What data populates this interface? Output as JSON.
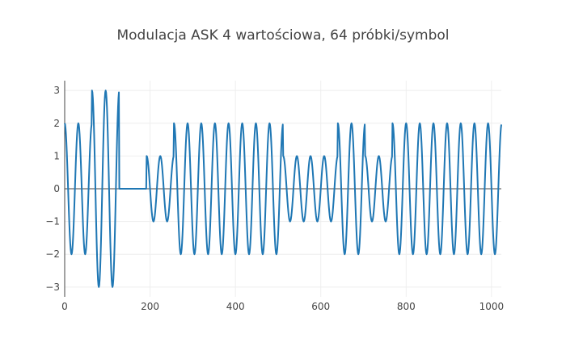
{
  "chart_data": {
    "type": "line",
    "title": "Modulacja ASK 4 wartościowa, 64 próbki/symbol",
    "xlabel": "",
    "ylabel": "",
    "xlim": [
      0,
      1023
    ],
    "ylim": [
      -3.3,
      3.3
    ],
    "x_ticks": [
      0,
      200,
      400,
      600,
      800,
      1000
    ],
    "y_ticks": [
      -3,
      -2,
      -1,
      0,
      1,
      2,
      3
    ],
    "x_tick_labels": [
      "0",
      "200",
      "400",
      "600",
      "800",
      "1000"
    ],
    "y_tick_labels": [
      "−3",
      "−2",
      "−1",
      "0",
      "1",
      "2",
      "3"
    ],
    "samples_per_symbol": 64,
    "cycles_per_symbol": 2,
    "symbol_amplitudes": [
      2,
      3,
      0,
      1,
      2,
      2,
      2,
      2,
      1,
      1,
      2,
      1,
      2,
      2,
      2,
      2
    ],
    "grid": true,
    "series": [
      {
        "color": "#1f77b4"
      }
    ]
  }
}
